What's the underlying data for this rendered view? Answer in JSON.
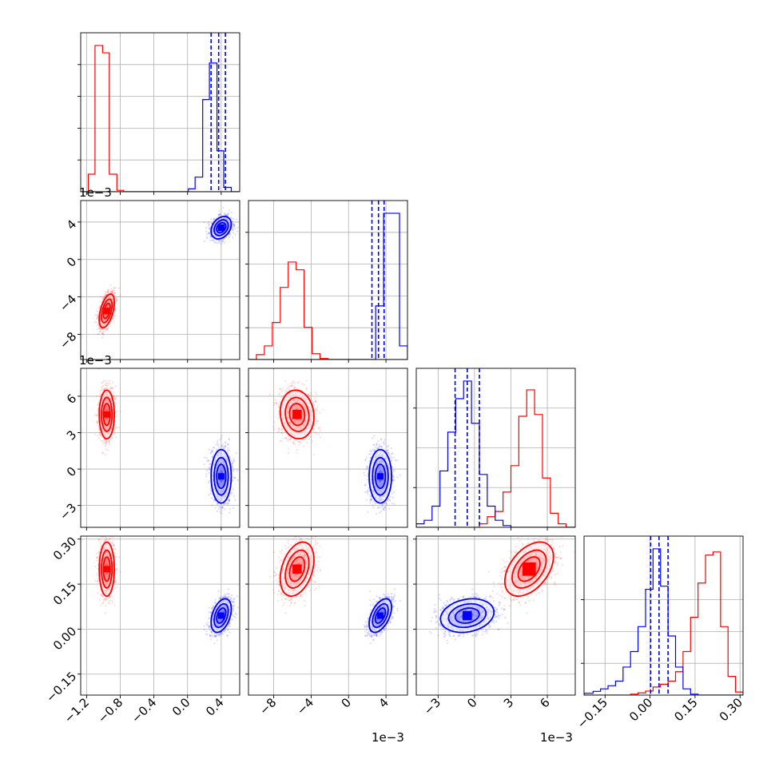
{
  "chart_data": {
    "type": "corner",
    "grid": true,
    "series": [
      {
        "color": "#ff0000"
      },
      {
        "color": "#0000ff"
      }
    ],
    "params": [
      {
        "range": [
          -1.27,
          0.62
        ],
        "ticks": [
          -1.2,
          -0.8,
          -0.4,
          0.0,
          0.4
        ],
        "tick_labels": [
          "−1.2",
          "−0.8",
          "−0.4",
          "0.0",
          "0.4"
        ],
        "offset": ""
      },
      {
        "range": [
          -0.0107,
          0.0063
        ],
        "ticks": [
          -0.008,
          -0.004,
          0.0,
          0.004
        ],
        "tick_labels": [
          "−8",
          "−4",
          "0",
          "4"
        ],
        "offset": "1e−3"
      },
      {
        "range": [
          -0.0048,
          0.0083
        ],
        "ticks": [
          -0.003,
          0.0,
          0.003,
          0.006
        ],
        "tick_labels": [
          "−3",
          "0",
          "3",
          "6"
        ],
        "offset": "1e−3"
      },
      {
        "range": [
          -0.22,
          0.31
        ],
        "ticks": [
          -0.15,
          0.0,
          0.15,
          0.3
        ],
        "tick_labels": [
          "−0.15",
          "0.00",
          "0.15",
          "0.30"
        ],
        "offset": ""
      }
    ],
    "means": [
      [
        -0.96,
        -0.0055,
        0.0045,
        0.2
      ],
      [
        0.4,
        0.0034,
        -0.0006,
        0.045
      ]
    ],
    "sigmas": [
      [
        0.045,
        0.0009,
        0.001,
        0.045
      ],
      [
        0.06,
        0.0006,
        0.0011,
        0.028
      ]
    ],
    "correlations": [
      [
        [
          1,
          0.5,
          0.0,
          0.0
        ],
        [
          0.5,
          1,
          -0.1,
          0.35
        ],
        [
          0.0,
          -0.1,
          1,
          0.45
        ],
        [
          0.0,
          0.35,
          0.45,
          1
        ]
      ],
      [
        [
          1,
          0.3,
          0.0,
          0.4
        ],
        [
          0.3,
          1,
          0.0,
          0.5
        ],
        [
          0.0,
          0.0,
          1,
          0.2
        ],
        [
          0.4,
          0.5,
          0.2,
          1
        ]
      ]
    ],
    "quantiles_blue": [
      [
        0.28,
        0.37,
        0.45
      ],
      [
        0.0025,
        0.0032,
        0.0038
      ],
      [
        -0.0016,
        -0.0006,
        0.0004
      ],
      [
        0.002,
        0.03,
        0.06
      ]
    ],
    "histograms": [
      {
        "bins": [
          -1.27,
          -1.18,
          -1.1,
          -1.01,
          -0.93,
          -0.84,
          -0.76,
          -0.67,
          -0.59,
          -0.5,
          -0.42,
          -0.33,
          -0.25,
          -0.16,
          -0.08,
          0.01,
          0.09,
          0.18,
          0.26,
          0.35,
          0.43,
          0.52,
          0.62
        ],
        "red": [
          0,
          0.12,
          1.0,
          0.95,
          0.12,
          0.01,
          0,
          0,
          0,
          0,
          0,
          0,
          0,
          0,
          0,
          0,
          0,
          0,
          0,
          0,
          0,
          0
        ],
        "blue": [
          0,
          0,
          0,
          0,
          0,
          0,
          0,
          0,
          0,
          0,
          0,
          0,
          0,
          0,
          0,
          0.02,
          0.1,
          0.63,
          0.88,
          0.28,
          0.03,
          0
        ]
      },
      {
        "bins": [
          -0.0107,
          -0.00985,
          -0.009,
          -0.00815,
          -0.0073,
          -0.00645,
          -0.0056,
          -0.00475,
          -0.0039,
          -0.00305,
          -0.0022,
          -0.00135,
          -0.0005,
          0.00035,
          0.0012,
          0.00205,
          0.0029,
          0.00375,
          0.0046,
          0.00545,
          0.0063
        ],
        "red": [
          0,
          0.05,
          0.14,
          0.38,
          0.74,
          1.0,
          0.92,
          0.33,
          0.06,
          0.01,
          0,
          0,
          0,
          0,
          0,
          0,
          0,
          0,
          0,
          0
        ],
        "blue": [
          0,
          0,
          0,
          0,
          0,
          0,
          0,
          0,
          0,
          0,
          0,
          0,
          0,
          0,
          0,
          0,
          0.55,
          1.5,
          1.5,
          0.14
        ]
      },
      {
        "bins": [
          -0.0048,
          -0.00415,
          -0.0035,
          -0.00285,
          -0.0022,
          -0.00155,
          -0.0009,
          -0.00025,
          0.0004,
          0.00105,
          0.0017,
          0.00235,
          0.003,
          0.00365,
          0.0043,
          0.00495,
          0.0056,
          0.00625,
          0.0069,
          0.00755,
          0.0083
        ],
        "red": [
          0,
          0,
          0,
          0,
          0,
          0,
          0,
          0,
          0.02,
          0.06,
          0.09,
          0.2,
          0.35,
          0.63,
          0.78,
          0.64,
          0.28,
          0.08,
          0.02,
          0
        ],
        "blue": [
          0.02,
          0.04,
          0.12,
          0.32,
          0.54,
          0.73,
          0.83,
          0.59,
          0.3,
          0.12,
          0.04,
          0.01,
          0,
          0,
          0,
          0,
          0,
          0,
          0,
          0
        ]
      },
      {
        "bins": [
          -0.22,
          -0.19,
          -0.165,
          -0.14,
          -0.115,
          -0.09,
          -0.065,
          -0.04,
          -0.015,
          0.01,
          0.035,
          0.06,
          0.085,
          0.11,
          0.135,
          0.16,
          0.185,
          0.21,
          0.235,
          0.26,
          0.285,
          0.31
        ],
        "red": [
          0,
          0,
          0,
          0,
          0,
          0,
          0.003,
          0.007,
          0.013,
          0.026,
          0.035,
          0.045,
          0.075,
          0.14,
          0.25,
          0.36,
          0.45,
          0.46,
          0.22,
          0.06,
          0.01
        ],
        "blue": [
          0.006,
          0.012,
          0.02,
          0.03,
          0.045,
          0.09,
          0.14,
          0.22,
          0.34,
          0.47,
          0.35,
          0.19,
          0.09,
          0.02,
          0.003,
          0,
          0,
          0,
          0,
          0,
          0
        ]
      }
    ]
  }
}
